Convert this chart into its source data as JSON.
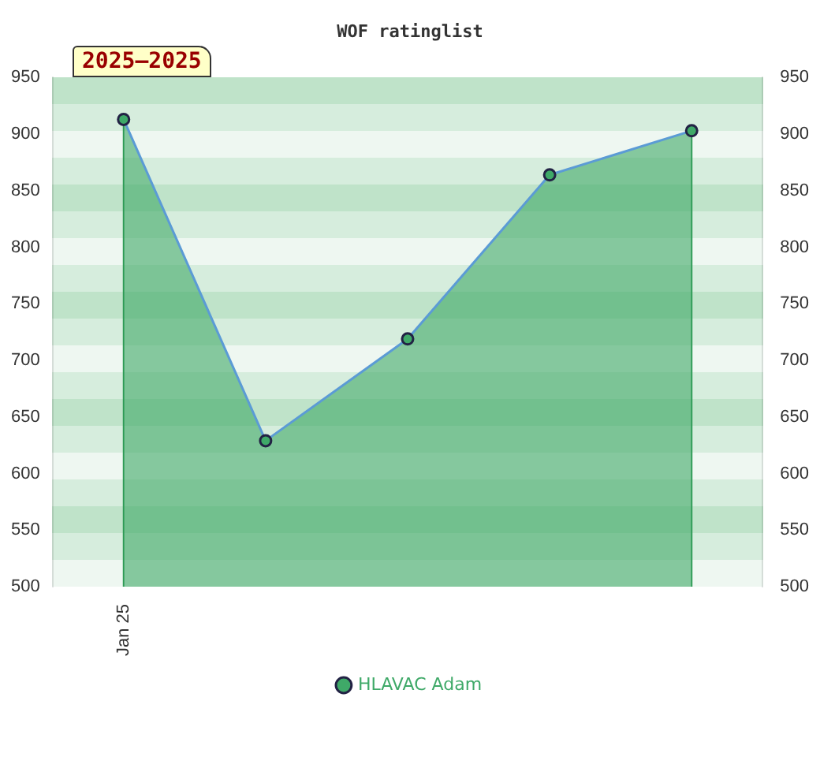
{
  "chart_data": {
    "type": "area",
    "title": "WOF ratinglist",
    "annotations": [
      "2025–2025"
    ],
    "categories": [
      "Jan 25",
      null,
      null,
      null,
      null
    ],
    "series": [
      {
        "name": "HLAVAC Adam",
        "color": "#3fa968",
        "values": [
          913,
          629,
          719,
          864,
          903
        ]
      }
    ],
    "ylim": [
      500,
      950
    ],
    "yticks": [
      500,
      550,
      600,
      650,
      700,
      750,
      800,
      850,
      900,
      950
    ],
    "y2lim": [
      500,
      950
    ],
    "y2ticks": [
      500,
      550,
      600,
      650,
      700,
      750,
      800,
      850,
      900,
      950
    ],
    "legend": "bottom",
    "marker": "circle"
  }
}
